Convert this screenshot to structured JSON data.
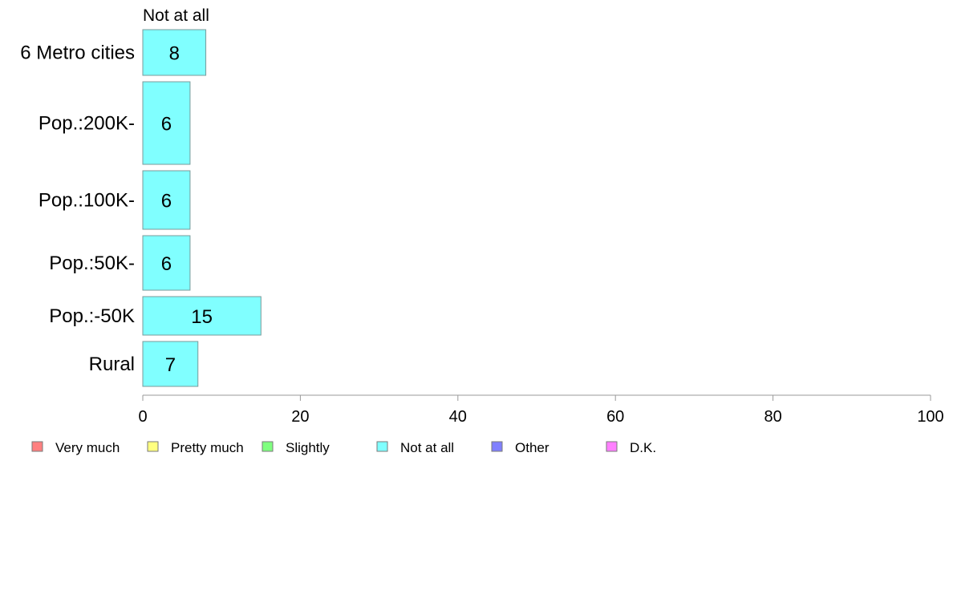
{
  "chart_data": {
    "type": "bar",
    "orientation": "horizontal",
    "stacked": true,
    "header": "Not at all",
    "categories": [
      "6 Metro cities",
      "Pop.:200K-",
      "Pop.:100K-",
      "Pop.:50K-",
      "Pop.:-50K",
      "Rural"
    ],
    "series": [
      {
        "name": "Very much",
        "color": "#ff8080",
        "values": [
          0,
          0,
          0,
          0,
          0,
          0
        ]
      },
      {
        "name": "Pretty much",
        "color": "#ffff80",
        "values": [
          0,
          0,
          0,
          0,
          0,
          0
        ]
      },
      {
        "name": "Slightly",
        "color": "#80ff80",
        "values": [
          0,
          0,
          0,
          0,
          0,
          0
        ]
      },
      {
        "name": "Not at all",
        "color": "#80ffff",
        "values": [
          8,
          6,
          6,
          6,
          15,
          7
        ]
      },
      {
        "name": "Other",
        "color": "#8080ff",
        "values": [
          0,
          0,
          0,
          0,
          0,
          0
        ]
      },
      {
        "name": "D.K.",
        "color": "#ff80ff",
        "values": [
          0,
          0,
          0,
          0,
          0,
          0
        ]
      }
    ],
    "data_labels": [
      "8",
      "6",
      "6",
      "6",
      "15",
      "7"
    ],
    "xlim": [
      0,
      100
    ],
    "xticks": [
      "0",
      "20",
      "40",
      "60",
      "80",
      "100"
    ],
    "grid": false,
    "legend_position": "bottom"
  }
}
